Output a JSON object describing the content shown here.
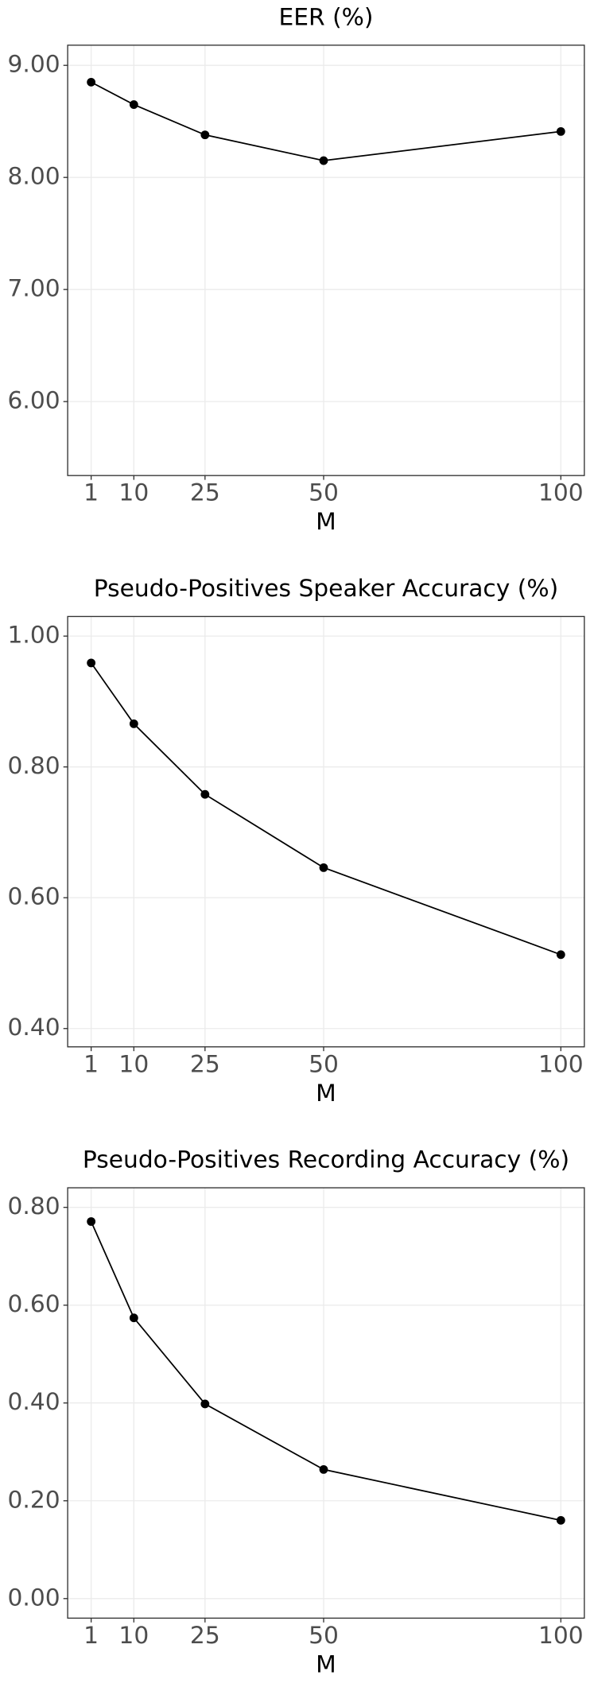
{
  "chart_data": [
    {
      "type": "line",
      "title": "EER (%)",
      "x_label": "M",
      "x": [
        1,
        10,
        25,
        50,
        100
      ],
      "xticks": [
        1,
        10,
        25,
        50,
        100
      ],
      "xlim": [
        -3.95,
        104.95
      ],
      "values": [
        8.85,
        8.65,
        8.38,
        8.15,
        8.41
      ],
      "color": "#000000",
      "ylim": [
        5.34,
        9.18
      ],
      "yticks": [
        {
          "value": 6,
          "label": "6.00"
        },
        {
          "value": 7,
          "label": "7.00"
        },
        {
          "value": 8,
          "label": "8.00"
        },
        {
          "value": 9,
          "label": "9.00"
        }
      ],
      "grid": true
    },
    {
      "type": "line",
      "title": "Pseudo-Positives Speaker Accuracy (%)",
      "x_label": "M",
      "x": [
        1,
        10,
        25,
        50,
        100
      ],
      "xticks": [
        1,
        10,
        25,
        50,
        100
      ],
      "xlim": [
        -3.95,
        104.95
      ],
      "values": [
        0.959,
        0.866,
        0.758,
        0.646,
        0.513
      ],
      "color": "#000000",
      "ylim": [
        0.372,
        1.03
      ],
      "yticks": [
        {
          "value": 0.4,
          "label": "0.40"
        },
        {
          "value": 0.6,
          "label": "0.60"
        },
        {
          "value": 0.8,
          "label": "0.80"
        },
        {
          "value": 1,
          "label": "1.00"
        }
      ],
      "grid": true
    },
    {
      "type": "line",
      "title": "Pseudo-Positives Recording Accuracy (%)",
      "x_label": "M",
      "x": [
        1,
        10,
        25,
        50,
        100
      ],
      "xticks": [
        1,
        10,
        25,
        50,
        100
      ],
      "xlim": [
        -3.95,
        104.95
      ],
      "values": [
        0.771,
        0.574,
        0.398,
        0.264,
        0.16
      ],
      "color": "#000000",
      "ylim": [
        -0.04,
        0.84
      ],
      "yticks": [
        {
          "value": 0,
          "label": "0.00"
        },
        {
          "value": 0.2,
          "label": "0.20"
        },
        {
          "value": 0.4,
          "label": "0.40"
        },
        {
          "value": 0.6,
          "label": "0.60"
        },
        {
          "value": 0.8,
          "label": "0.80"
        }
      ],
      "grid": true
    }
  ]
}
